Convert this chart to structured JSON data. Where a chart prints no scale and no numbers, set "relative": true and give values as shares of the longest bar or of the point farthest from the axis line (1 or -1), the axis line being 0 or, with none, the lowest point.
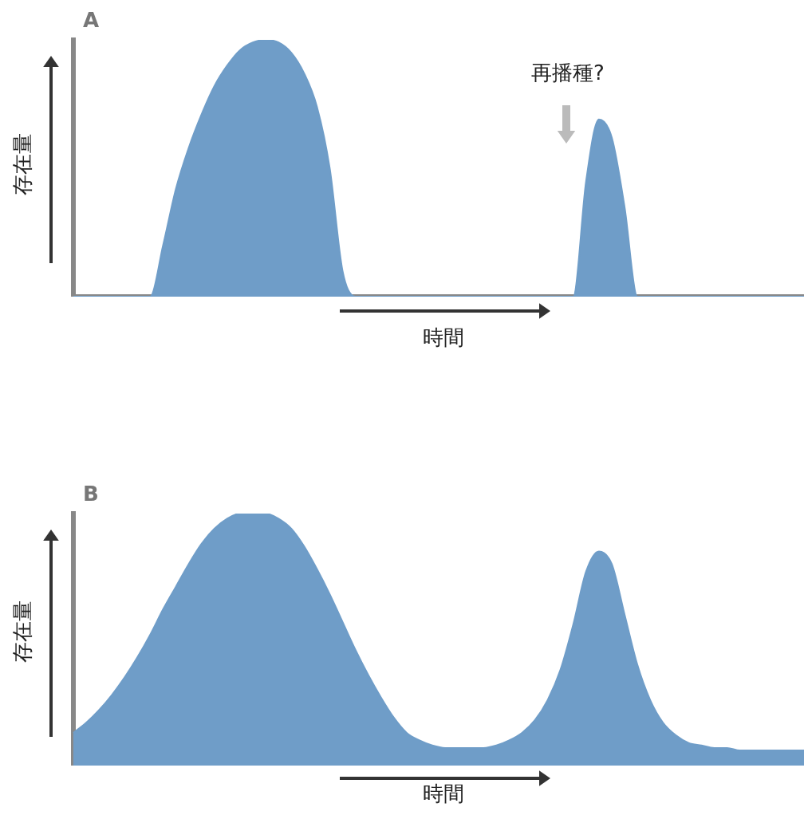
{
  "chart_data": [
    {
      "type": "area",
      "relative": true,
      "xlabel": "時間",
      "ylabel": "存在量",
      "annotations": [
        "A",
        "再播種?"
      ],
      "categories": [
        null,
        null,
        null,
        null,
        null,
        null,
        null,
        null,
        null,
        null,
        null,
        null,
        null,
        null,
        null,
        null,
        null,
        null,
        null,
        null,
        null,
        null,
        null,
        null,
        null,
        null,
        null,
        null,
        null,
        null,
        null,
        null,
        null,
        null,
        null,
        null,
        null,
        null,
        null,
        null,
        null,
        null,
        null,
        null,
        null,
        null,
        null,
        null,
        null,
        null,
        null,
        null,
        null,
        null,
        null,
        null,
        null,
        null
      ],
      "series": [
        {
          "color": "#6f9dc8",
          "values": [
            0,
            0,
            0,
            0,
            0,
            0,
            0,
            0.2,
            0.42,
            0.58,
            0.71,
            0.82,
            0.9,
            0.96,
            0.99,
            1,
            0.99,
            0.95,
            0.87,
            0.74,
            0.5,
            0.1,
            0,
            0,
            0,
            0,
            0,
            0,
            0,
            0,
            0,
            0,
            0,
            0,
            0,
            0,
            0,
            0,
            0,
            0,
            0.45,
            0.69,
            0.62,
            0.35,
            0,
            0,
            0,
            0,
            0,
            0,
            0,
            0,
            0,
            0,
            0,
            0,
            0,
            0
          ]
        }
      ]
    },
    {
      "type": "area",
      "relative": true,
      "xlabel": "時間",
      "ylabel": "存在量",
      "annotations": [
        "B"
      ],
      "categories": [
        null,
        null,
        null,
        null,
        null,
        null,
        null,
        null,
        null,
        null,
        null,
        null,
        null,
        null,
        null,
        null,
        null,
        null,
        null,
        null,
        null,
        null,
        null,
        null,
        null,
        null,
        null,
        null,
        null,
        null,
        null,
        null,
        null,
        null,
        null,
        null,
        null,
        null,
        null,
        null,
        null,
        null,
        null,
        null,
        null,
        null,
        null,
        null,
        null,
        null,
        null,
        null,
        null,
        null,
        null,
        null,
        null,
        null
      ],
      "series": [
        {
          "color": "#6f9dc8",
          "values": [
            0.13,
            0.17,
            0.22,
            0.28,
            0.35,
            0.43,
            0.52,
            0.62,
            0.71,
            0.8,
            0.88,
            0.94,
            0.98,
            1,
            1,
            1,
            0.98,
            0.94,
            0.87,
            0.78,
            0.68,
            0.57,
            0.46,
            0.36,
            0.27,
            0.19,
            0.13,
            0.1,
            0.08,
            0.07,
            0.07,
            0.07,
            0.07,
            0.08,
            0.1,
            0.13,
            0.18,
            0.26,
            0.38,
            0.56,
            0.77,
            0.85,
            0.8,
            0.6,
            0.4,
            0.26,
            0.17,
            0.12,
            0.09,
            0.08,
            0.07,
            0.07,
            0.06,
            0.06,
            0.06,
            0.06,
            0.06,
            0.06
          ]
        }
      ]
    }
  ]
}
